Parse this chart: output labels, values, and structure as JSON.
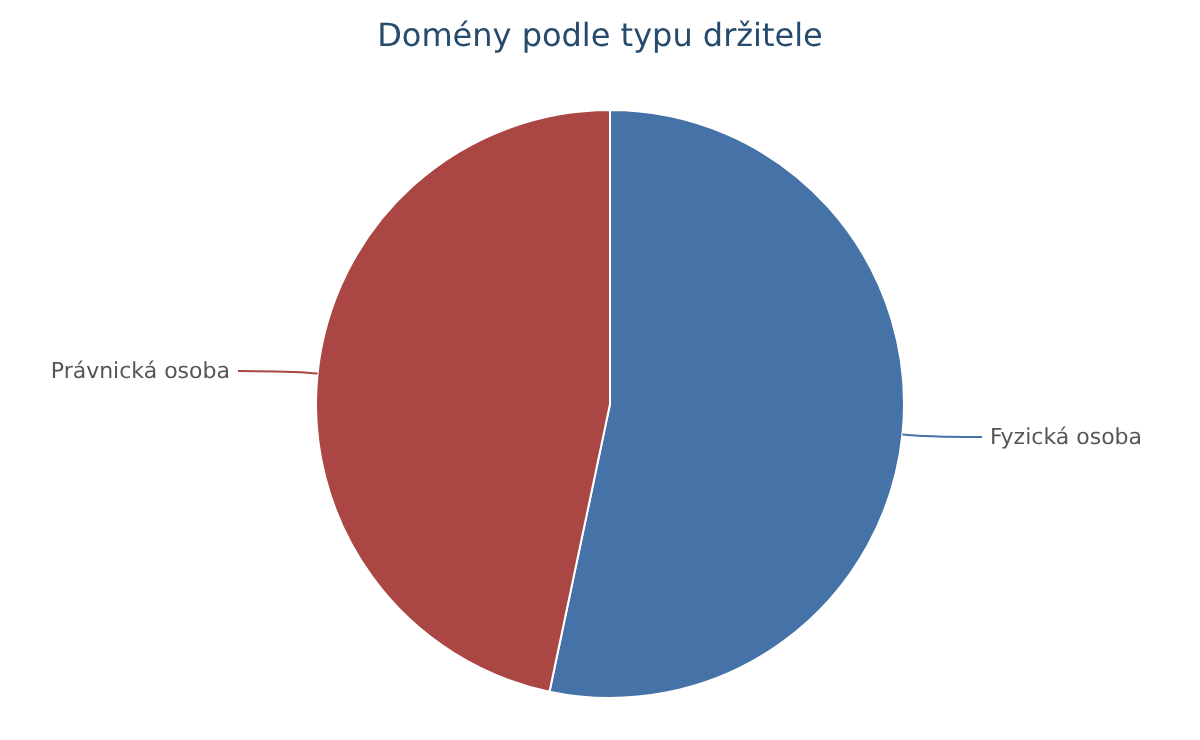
{
  "chart_data": {
    "type": "pie",
    "title": "Domény podle typu držitele",
    "categories": [
      "Fyzická osoba",
      "Právnická osoba"
    ],
    "values": [
      53.3,
      46.7
    ],
    "colors": [
      "#4572a7",
      "#aa4643"
    ]
  }
}
